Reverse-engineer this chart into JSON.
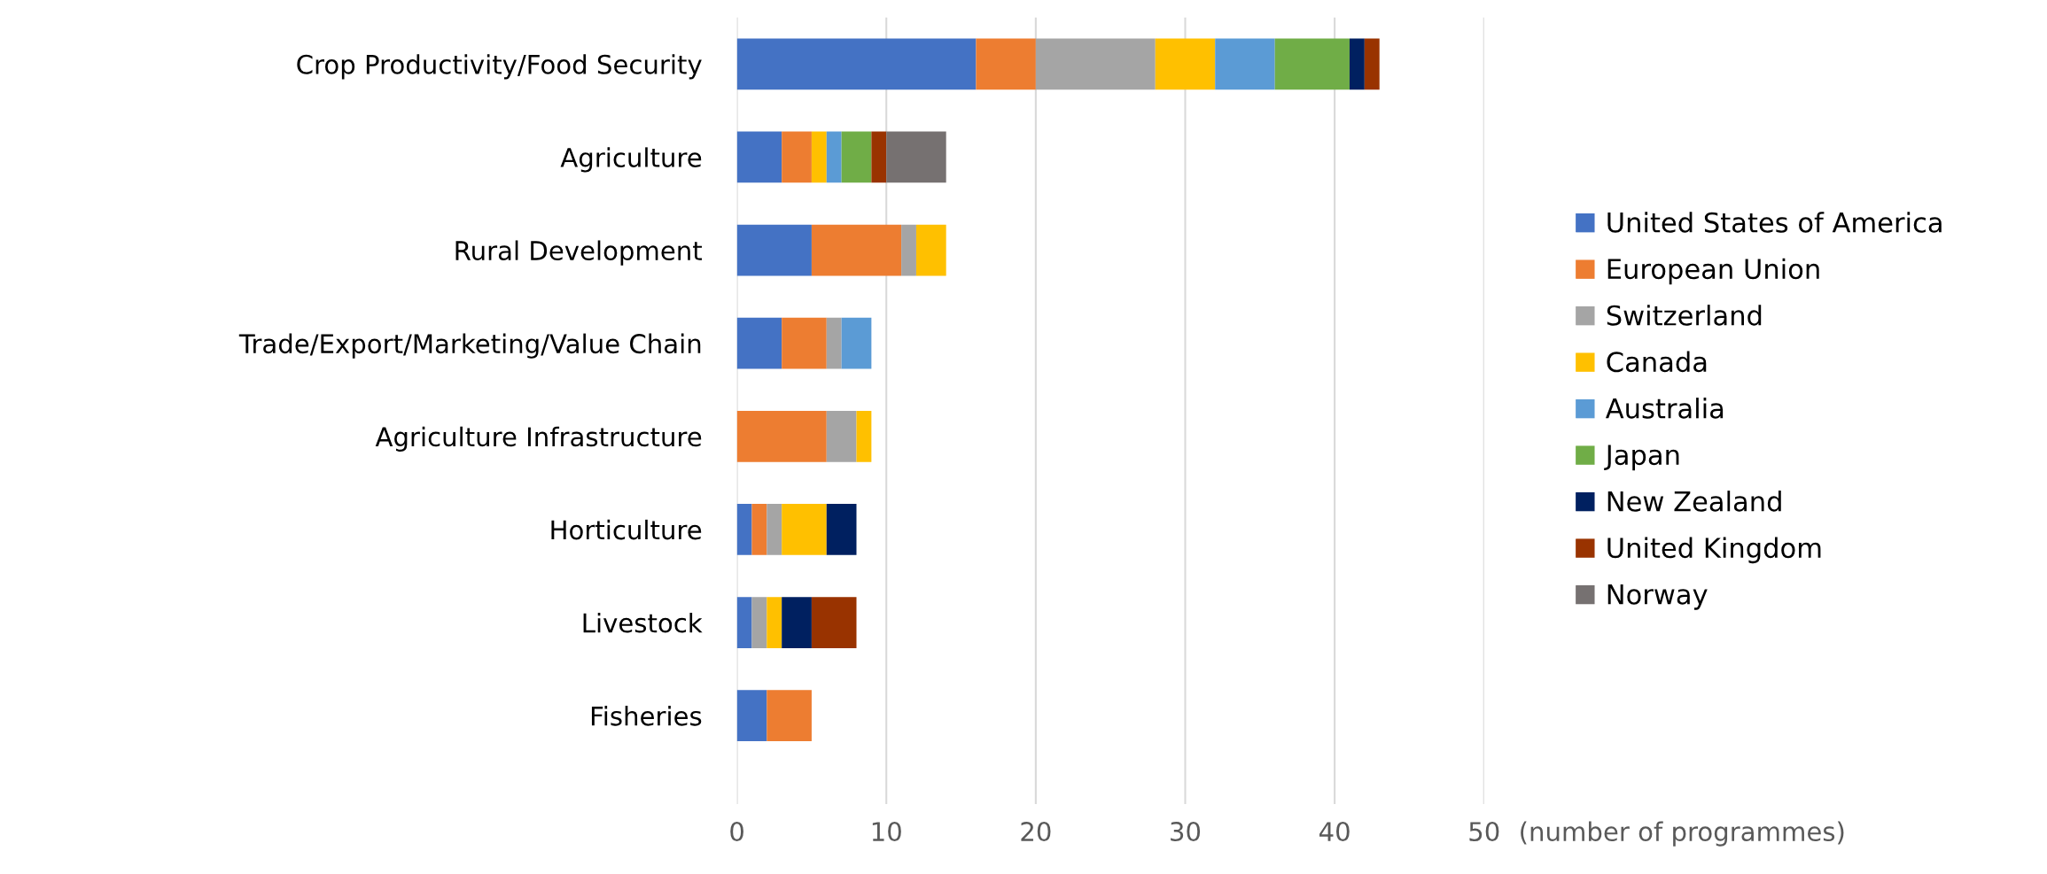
{
  "chart_data": {
    "type": "bar",
    "orientation": "horizontal",
    "stacked": true,
    "xlabel": "(number of programmes)",
    "categories": [
      "Crop Productivity/Food Security",
      "Agriculture",
      "Rural Development",
      "Trade/Export/Marketing/Value Chain",
      "Agriculture Infrastructure",
      "Horticulture",
      "Livestock",
      "Fisheries"
    ],
    "series": [
      {
        "name": "United States of America",
        "color": "#4472c4",
        "values": [
          16,
          3,
          5,
          3,
          0,
          1,
          1,
          2
        ]
      },
      {
        "name": "European Union",
        "color": "#ed7d31",
        "values": [
          4,
          2,
          6,
          3,
          6,
          1,
          0,
          3
        ]
      },
      {
        "name": "Switzerland",
        "color": "#a5a5a5",
        "values": [
          8,
          0,
          1,
          1,
          2,
          1,
          1,
          0
        ]
      },
      {
        "name": "Canada",
        "color": "#ffc000",
        "values": [
          4,
          1,
          2,
          0,
          1,
          3,
          1,
          0
        ]
      },
      {
        "name": "Australia",
        "color": "#5b9bd5",
        "values": [
          4,
          1,
          0,
          2,
          0,
          0,
          0,
          0
        ]
      },
      {
        "name": "Japan",
        "color": "#70ad47",
        "values": [
          5,
          2,
          0,
          0,
          0,
          0,
          0,
          0
        ]
      },
      {
        "name": "New Zealand",
        "color": "#002060",
        "values": [
          1,
          0,
          0,
          0,
          0,
          2,
          2,
          0
        ]
      },
      {
        "name": "United Kingdom",
        "color": "#993300",
        "values": [
          1,
          1,
          0,
          0,
          0,
          0,
          3,
          0
        ]
      },
      {
        "name": "Norway",
        "color": "#767171",
        "values": [
          0,
          4,
          0,
          0,
          0,
          0,
          0,
          0
        ]
      }
    ],
    "xlim": [
      0,
      50
    ],
    "xticks": [
      0,
      10,
      20,
      30,
      40,
      50
    ],
    "grid": "x",
    "legend": "right"
  }
}
